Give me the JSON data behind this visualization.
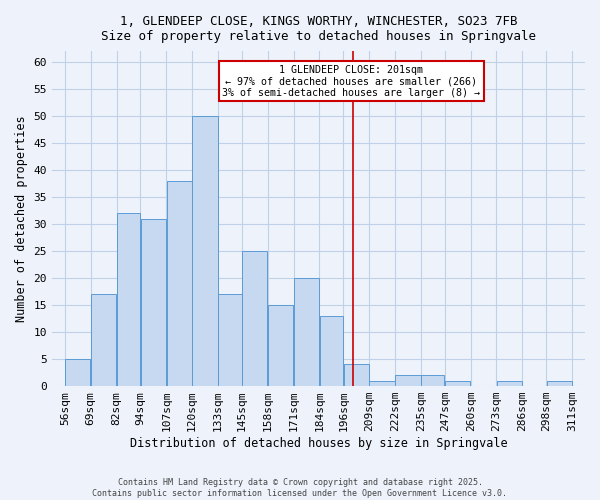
{
  "title_line1": "1, GLENDEEP CLOSE, KINGS WORTHY, WINCHESTER, SO23 7FB",
  "title_line2": "Size of property relative to detached houses in Springvale",
  "xlabel": "Distribution of detached houses by size in Springvale",
  "ylabel": "Number of detached properties",
  "bar_edges": [
    56,
    69,
    82,
    94,
    107,
    120,
    133,
    145,
    158,
    171,
    184,
    196,
    209,
    222,
    235,
    247,
    260,
    273,
    286,
    298,
    311
  ],
  "bar_heights": [
    5,
    17,
    32,
    31,
    38,
    50,
    17,
    25,
    15,
    20,
    13,
    4,
    1,
    2,
    2,
    1,
    0,
    1,
    0,
    1
  ],
  "bar_color": "#c6d9f0",
  "bar_edgecolor": "#5b9bd5",
  "grid_color": "#c0d0e8",
  "background_color": "#eef3fb",
  "vline_x": 201,
  "vline_color": "#cc0000",
  "annotation_title": "1 GLENDEEP CLOSE: 201sqm",
  "annotation_line1": "← 97% of detached houses are smaller (266)",
  "annotation_line2": "3% of semi-detached houses are larger (8) →",
  "annotation_box_color": "#ffffff",
  "annotation_box_edgecolor": "#cc0000",
  "ylim": [
    0,
    62
  ],
  "yticks": [
    0,
    5,
    10,
    15,
    20,
    25,
    30,
    35,
    40,
    45,
    50,
    55,
    60
  ],
  "tick_labels": [
    "56sqm",
    "69sqm",
    "82sqm",
    "94sqm",
    "107sqm",
    "120sqm",
    "133sqm",
    "145sqm",
    "158sqm",
    "171sqm",
    "184sqm",
    "196sqm",
    "209sqm",
    "222sqm",
    "235sqm",
    "247sqm",
    "260sqm",
    "273sqm",
    "286sqm",
    "298sqm",
    "311sqm"
  ],
  "footer_line1": "Contains HM Land Registry data © Crown copyright and database right 2025.",
  "footer_line2": "Contains public sector information licensed under the Open Government Licence v3.0."
}
